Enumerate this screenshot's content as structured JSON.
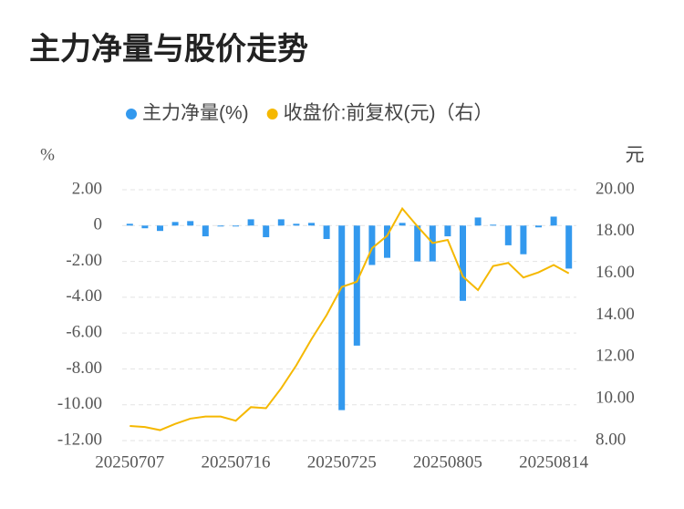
{
  "chart_data": {
    "type": "bar_line",
    "title": "主力净量与股价走势",
    "y_label": "%",
    "y2_label": "元",
    "categories": [
      "20250707",
      null,
      null,
      null,
      null,
      null,
      null,
      "20250716",
      null,
      null,
      null,
      null,
      null,
      null,
      "20250725",
      null,
      null,
      null,
      null,
      null,
      null,
      "20250805",
      null,
      null,
      null,
      null,
      null,
      null,
      "20250814",
      null
    ],
    "series": [
      {
        "name": "主力净量(%)",
        "color": "#3399ee",
        "kind": "bar",
        "values": [
          0.1,
          -0.15,
          -0.3,
          0.2,
          0.25,
          -0.6,
          -0.05,
          -0.05,
          0.35,
          -0.65,
          0.35,
          0.1,
          0.15,
          -0.75,
          -10.3,
          -6.7,
          -2.2,
          -1.8,
          0.15,
          -2.0,
          -2.0,
          -0.6,
          -4.2,
          0.45,
          0.05,
          -1.1,
          -1.6,
          -0.1,
          0.5,
          -2.4
        ]
      },
      {
        "name": "收盘价:前复权(元)（右）",
        "color": "#f5b800",
        "kind": "line",
        "axis": "y2",
        "values": [
          8.7,
          8.65,
          8.5,
          8.8,
          9.05,
          9.15,
          9.15,
          8.95,
          9.6,
          9.55,
          10.5,
          11.6,
          12.85,
          14.0,
          15.35,
          15.6,
          17.2,
          17.8,
          19.1,
          18.25,
          17.45,
          17.6,
          15.85,
          15.2,
          16.35,
          16.5,
          15.8,
          16.05,
          16.4,
          16.0
        ]
      }
    ],
    "ylim": [
      -12,
      2
    ],
    "yticks": [
      {
        "value": 2,
        "label": "2.00"
      },
      0,
      {
        "value": -2,
        "label": "-2.00"
      },
      {
        "value": -4,
        "label": "-4.00"
      },
      {
        "value": -6,
        "label": "-6.00"
      },
      {
        "value": -8,
        "label": "-8.00"
      },
      {
        "value": -10,
        "label": "-10.00"
      },
      {
        "value": -12,
        "label": "-12.00"
      }
    ],
    "y2lim": [
      8,
      20
    ],
    "y2ticks": [
      {
        "value": 20,
        "label": "20.00"
      },
      {
        "value": 18,
        "label": "18.00"
      },
      {
        "value": 16,
        "label": "16.00"
      },
      {
        "value": 14,
        "label": "14.00"
      },
      {
        "value": 12,
        "label": "12.00"
      },
      {
        "value": 10,
        "label": "10.00"
      },
      {
        "value": 8,
        "label": "8.00"
      }
    ],
    "grid": true,
    "legend": "top"
  }
}
